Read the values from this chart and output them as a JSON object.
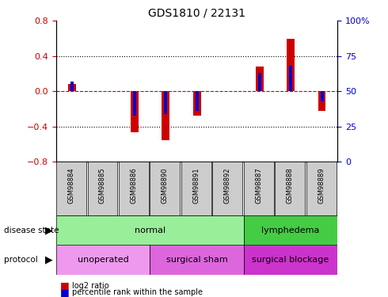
{
  "title": "GDS1810 / 22131",
  "samples": [
    "GSM98884",
    "GSM98885",
    "GSM98886",
    "GSM98890",
    "GSM98891",
    "GSM98892",
    "GSM98887",
    "GSM98888",
    "GSM98889"
  ],
  "log2_ratio": [
    0.08,
    0.0,
    -0.46,
    -0.55,
    -0.28,
    0.0,
    0.28,
    0.6,
    -0.22
  ],
  "percentile_rank": [
    57,
    50,
    33,
    34,
    36,
    50,
    63,
    68,
    43
  ],
  "ylim_left": [
    -0.8,
    0.8
  ],
  "ylim_right": [
    0,
    100
  ],
  "yticks_left": [
    -0.8,
    -0.4,
    0.0,
    0.4,
    0.8
  ],
  "yticks_right": [
    0,
    25,
    50,
    75,
    100
  ],
  "red_color": "#cc0000",
  "blue_color": "#0000cc",
  "disease_normal_color": "#99ee99",
  "disease_lymph_color": "#44cc44",
  "protocol_unoperated_color": "#ee99ee",
  "protocol_sham_color": "#dd66dd",
  "protocol_blockage_color": "#cc33cc",
  "tick_label_color_left": "#cc0000",
  "tick_label_color_right": "#0000cc",
  "zero_line_color": "#cc0000",
  "sample_bg_color": "#cccccc",
  "legend_red_label": "log2 ratio",
  "legend_blue_label": "percentile rank within the sample",
  "row_label_disease": "disease state",
  "row_label_protocol": "protocol",
  "disease_groups": [
    {
      "label": "normal",
      "start": 0,
      "end": 6,
      "color": "#99ee99"
    },
    {
      "label": "lymphedema",
      "start": 6,
      "end": 9,
      "color": "#44cc44"
    }
  ],
  "protocol_groups": [
    {
      "label": "unoperated",
      "start": 0,
      "end": 3,
      "color": "#ee99ee"
    },
    {
      "label": "surgical sham",
      "start": 3,
      "end": 6,
      "color": "#dd66dd"
    },
    {
      "label": "surgical blockage",
      "start": 6,
      "end": 9,
      "color": "#cc33cc"
    }
  ]
}
